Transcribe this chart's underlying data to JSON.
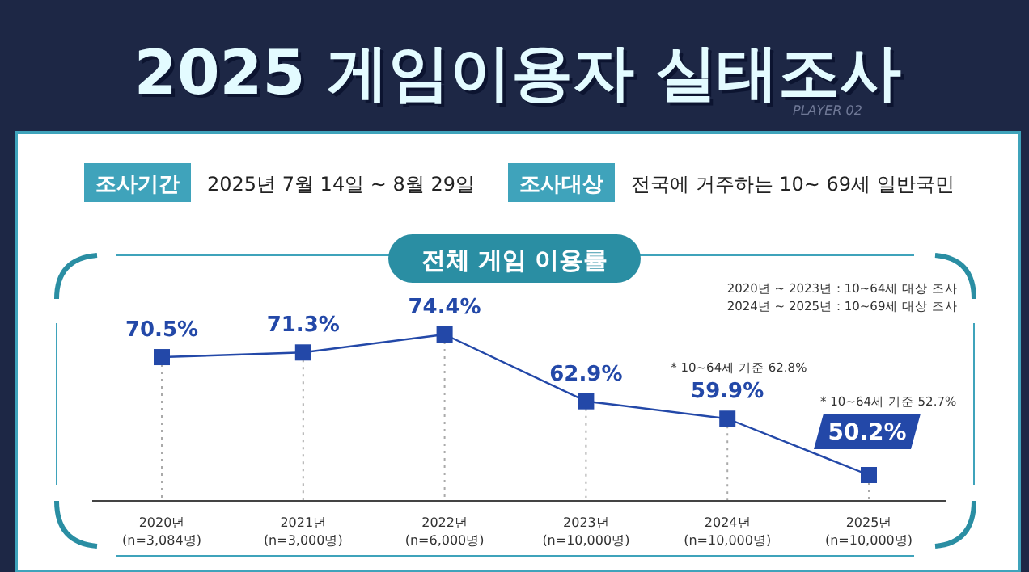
{
  "chart_data": {
    "type": "line",
    "title": "2025 게임이용자 실태조사",
    "subtitle": "전체 게임 이용률",
    "categories": [
      "2020년\n(n=3,084명)",
      "2021년\n(n=3,000명)",
      "2022년\n(n=6,000명)",
      "2023년\n(n=10,000명)",
      "2024년\n(n=10,000명)",
      "2025년\n(n=10,000명)"
    ],
    "color": "#2348a8",
    "values": [
      70.5,
      71.3,
      74.4,
      62.9,
      59.9,
      50.2
    ],
    "value_labels": [
      "70.5%",
      "71.3%",
      "74.4%",
      "62.9%",
      "59.9%",
      "50.2%"
    ],
    "marker": "square",
    "line_style": "solid",
    "grid": "x",
    "annotations": [
      "조사기간",
      "2025년 7월 14일 ~ 8월 29일",
      "조사대상",
      "전국에 거주하는 10~ 69세 일반국민",
      "PLAYER 02",
      "2020년 ~ 2023년 : 10~64세 대상 조사",
      "2024년 ~ 2025년 : 10~69세 대상 조사",
      "* 10~64세 기준 62.8%",
      "* 10~64세 기준 52.7%"
    ]
  }
}
